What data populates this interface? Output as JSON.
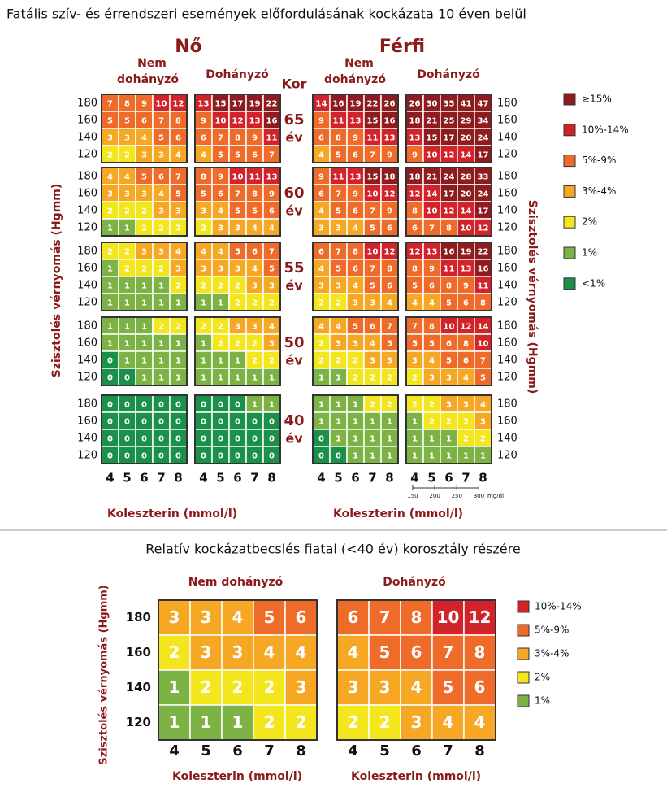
{
  "title": "Fatális szív- és érrendszeri események előfordulásának kockázata 10 éven belül",
  "female": "Nő",
  "male": "Férfi",
  "nonsmoker": [
    "Nem",
    "dohányzó"
  ],
  "smoker": "Dohányzó",
  "age_label": "Kor",
  "ages": [
    "65",
    "60",
    "55",
    "50",
    "40"
  ],
  "age_unit": "év",
  "y_label": "Szisztolés vérnyomás (Hgmm)",
  "x_label": "Koleszterin (mmol/l)",
  "systolic": [
    180,
    160,
    140,
    120
  ],
  "cholesterol": [
    4,
    5,
    6,
    7,
    8
  ],
  "mgdl": [
    150,
    200,
    250,
    300
  ],
  "mgdl_unit": "mg/dl",
  "panels": [
    {
      "values": [
        [
          [
            7,
            8,
            9,
            10,
            12
          ],
          [
            5,
            5,
            6,
            7,
            8
          ],
          [
            3,
            3,
            4,
            5,
            6
          ],
          [
            2,
            2,
            3,
            3,
            4
          ]
        ],
        [
          [
            4,
            4,
            5,
            6,
            7
          ],
          [
            3,
            3,
            3,
            4,
            5
          ],
          [
            2,
            2,
            2,
            3,
            3
          ],
          [
            1,
            1,
            2,
            2,
            2
          ]
        ],
        [
          [
            2,
            2,
            3,
            3,
            4
          ],
          [
            1,
            2,
            2,
            2,
            3
          ],
          [
            1,
            1,
            1,
            1,
            2
          ],
          [
            1,
            1,
            1,
            1,
            1
          ]
        ],
        [
          [
            1,
            1,
            1,
            2,
            2
          ],
          [
            1,
            1,
            1,
            1,
            1
          ],
          [
            0,
            1,
            1,
            1,
            1
          ],
          [
            0,
            0,
            1,
            1,
            1
          ]
        ],
        [
          [
            0,
            0,
            0,
            0,
            0
          ],
          [
            0,
            0,
            0,
            0,
            0
          ],
          [
            0,
            0,
            0,
            0,
            0
          ],
          [
            0,
            0,
            0,
            0,
            0
          ]
        ]
      ]
    },
    {
      "values": [
        [
          [
            13,
            15,
            17,
            19,
            22
          ],
          [
            9,
            10,
            12,
            13,
            16
          ],
          [
            6,
            7,
            8,
            9,
            11
          ],
          [
            4,
            5,
            5,
            6,
            7
          ]
        ],
        [
          [
            8,
            9,
            10,
            11,
            13
          ],
          [
            5,
            6,
            7,
            8,
            9
          ],
          [
            3,
            4,
            5,
            5,
            6
          ],
          [
            2,
            3,
            3,
            4,
            4
          ]
        ],
        [
          [
            4,
            4,
            5,
            6,
            7
          ],
          [
            3,
            3,
            3,
            4,
            5
          ],
          [
            2,
            2,
            2,
            3,
            3
          ],
          [
            1,
            1,
            2,
            2,
            2
          ]
        ],
        [
          [
            2,
            2,
            3,
            3,
            4
          ],
          [
            1,
            2,
            2,
            2,
            3
          ],
          [
            1,
            1,
            1,
            2,
            2
          ],
          [
            1,
            1,
            1,
            1,
            1
          ]
        ],
        [
          [
            0,
            0,
            0,
            1,
            1
          ],
          [
            0,
            0,
            0,
            0,
            0
          ],
          [
            0,
            0,
            0,
            0,
            0
          ],
          [
            0,
            0,
            0,
            0,
            0
          ]
        ]
      ]
    },
    {
      "values": [
        [
          [
            14,
            16,
            19,
            22,
            26
          ],
          [
            9,
            11,
            13,
            15,
            16
          ],
          [
            6,
            8,
            9,
            11,
            13
          ],
          [
            4,
            5,
            6,
            7,
            9
          ]
        ],
        [
          [
            9,
            11,
            13,
            15,
            18
          ],
          [
            6,
            7,
            9,
            10,
            12
          ],
          [
            4,
            5,
            6,
            7,
            9
          ],
          [
            3,
            3,
            4,
            5,
            6
          ]
        ],
        [
          [
            6,
            7,
            8,
            10,
            12
          ],
          [
            4,
            5,
            6,
            7,
            8
          ],
          [
            3,
            3,
            4,
            5,
            6
          ],
          [
            2,
            2,
            3,
            3,
            4
          ]
        ],
        [
          [
            4,
            4,
            5,
            6,
            7
          ],
          [
            2,
            3,
            3,
            4,
            5
          ],
          [
            2,
            2,
            2,
            3,
            3
          ],
          [
            1,
            1,
            2,
            2,
            2
          ]
        ],
        [
          [
            1,
            1,
            1,
            2,
            2
          ],
          [
            1,
            1,
            1,
            1,
            1
          ],
          [
            0,
            1,
            1,
            1,
            1
          ],
          [
            0,
            0,
            1,
            1,
            1
          ]
        ]
      ]
    },
    {
      "values": [
        [
          [
            26,
            30,
            35,
            41,
            47
          ],
          [
            18,
            21,
            25,
            29,
            34
          ],
          [
            13,
            15,
            17,
            20,
            24
          ],
          [
            9,
            10,
            12,
            14,
            17
          ]
        ],
        [
          [
            18,
            21,
            24,
            28,
            33
          ],
          [
            12,
            14,
            17,
            20,
            24
          ],
          [
            8,
            10,
            12,
            14,
            17
          ],
          [
            6,
            7,
            8,
            10,
            12
          ]
        ],
        [
          [
            12,
            13,
            16,
            19,
            22
          ],
          [
            8,
            9,
            11,
            13,
            16
          ],
          [
            5,
            6,
            8,
            9,
            11
          ],
          [
            4,
            4,
            5,
            6,
            8
          ]
        ],
        [
          [
            7,
            8,
            10,
            12,
            14
          ],
          [
            5,
            5,
            6,
            8,
            10
          ],
          [
            3,
            4,
            5,
            6,
            7
          ],
          [
            2,
            3,
            3,
            4,
            5
          ]
        ],
        [
          [
            2,
            2,
            3,
            3,
            4
          ],
          [
            1,
            2,
            2,
            2,
            3
          ],
          [
            1,
            1,
            1,
            2,
            2
          ],
          [
            1,
            1,
            1,
            1,
            1
          ]
        ]
      ]
    }
  ],
  "legend": [
    {
      "label": "≥15%",
      "color": "#8e1b1e",
      "min": 15
    },
    {
      "label": "10%-14%",
      "color": "#d2232a",
      "min": 10
    },
    {
      "label": "5%-9%",
      "color": "#ee6b2a",
      "min": 5
    },
    {
      "label": "3%-4%",
      "color": "#f6a724",
      "min": 3
    },
    {
      "label": "2%",
      "color": "#f3e61c",
      "min": 2
    },
    {
      "label": "1%",
      "color": "#7db344",
      "min": 1
    },
    {
      "label": "<1%",
      "color": "#1a9148"
    }
  ],
  "bottom": {
    "title": "Relatív kockázatbecslés fiatal (<40 év) korosztály részére",
    "groups": [
      {
        "label": "Nem  dohányzó",
        "values": [
          [
            3,
            3,
            4,
            5,
            6
          ],
          [
            2,
            3,
            3,
            4,
            4
          ],
          [
            1,
            2,
            2,
            2,
            3
          ],
          [
            1,
            1,
            1,
            2,
            2
          ]
        ]
      },
      {
        "label": "Dohányzó",
        "values": [
          [
            6,
            7,
            8,
            10,
            12
          ],
          [
            4,
            5,
            6,
            7,
            8
          ],
          [
            3,
            3,
            4,
            5,
            6
          ],
          [
            2,
            2,
            3,
            4,
            4
          ]
        ]
      }
    ],
    "legend": [
      {
        "label": "10%-14%",
        "color": "#d2232a",
        "min": 10
      },
      {
        "label": "5%-9%",
        "color": "#ee6b2a",
        "min": 5
      },
      {
        "label": "3%-4%",
        "color": "#f6a724",
        "min": 3
      },
      {
        "label": "2%",
        "color": "#f3e61c",
        "min": 2
      },
      {
        "label": "1%",
        "color": "#7db344",
        "min": 1
      }
    ]
  }
}
